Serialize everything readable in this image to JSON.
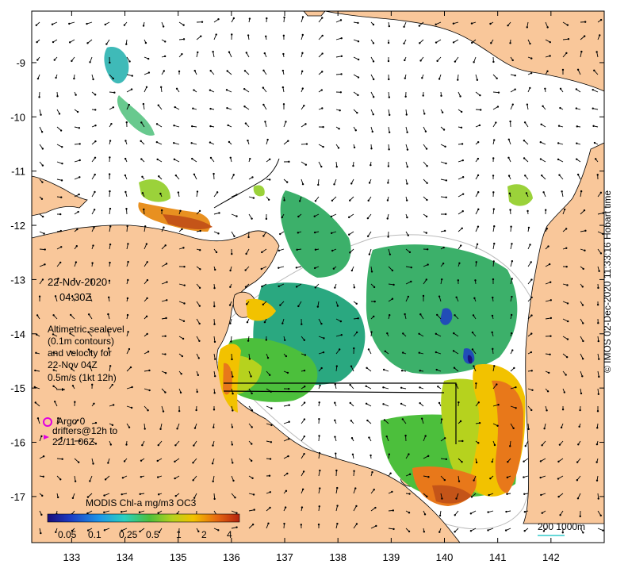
{
  "map": {
    "lon_range": [
      132.25,
      143.0
    ],
    "lat_range": [
      -17.85,
      -8.05
    ],
    "lon_ticks": [
      "133",
      "134",
      "135",
      "136",
      "137",
      "138",
      "139",
      "140",
      "141",
      "142"
    ],
    "lat_ticks": [
      "-9",
      "-10",
      "-11",
      "-12",
      "-13",
      "-14",
      "-15",
      "-16",
      "-17"
    ],
    "colors": {
      "land": "#f9c79a",
      "ocean": "#ffffff",
      "coast": "#000000",
      "scale_line": "#33cccc"
    }
  },
  "annotations": {
    "date": "22-Nov-2020",
    "time": "04:30Z",
    "sealevel_line1": "Altimetric sealevel",
    "sealevel_line2": "(0.1m contours)",
    "sealevel_line3": "and velocity for",
    "sealevel_line4": "22-Nov 04Z",
    "speed_ref": "0.5m/s (1kt 12h)",
    "argo": "Argo 0",
    "drifters_line1": "drifters@12h to",
    "drifters_line2": "22/11 06Z"
  },
  "colorbar": {
    "title": "MODIS Chl-a mg/m3 OC3",
    "tick_labels": [
      "0.05",
      "0.1",
      "0.25",
      "0.5",
      "1",
      "2",
      "4"
    ],
    "colors": [
      "#1a0d7a",
      "#1c3cc4",
      "#1e96e8",
      "#2ad0c0",
      "#4cbf3c",
      "#b6d21e",
      "#f2c200",
      "#e86a10",
      "#b5220e"
    ]
  },
  "scale_bar": {
    "label": "200 1000m"
  },
  "credit": "© IMOS 02-Dec-2020 11:33:16 Hobart time"
}
